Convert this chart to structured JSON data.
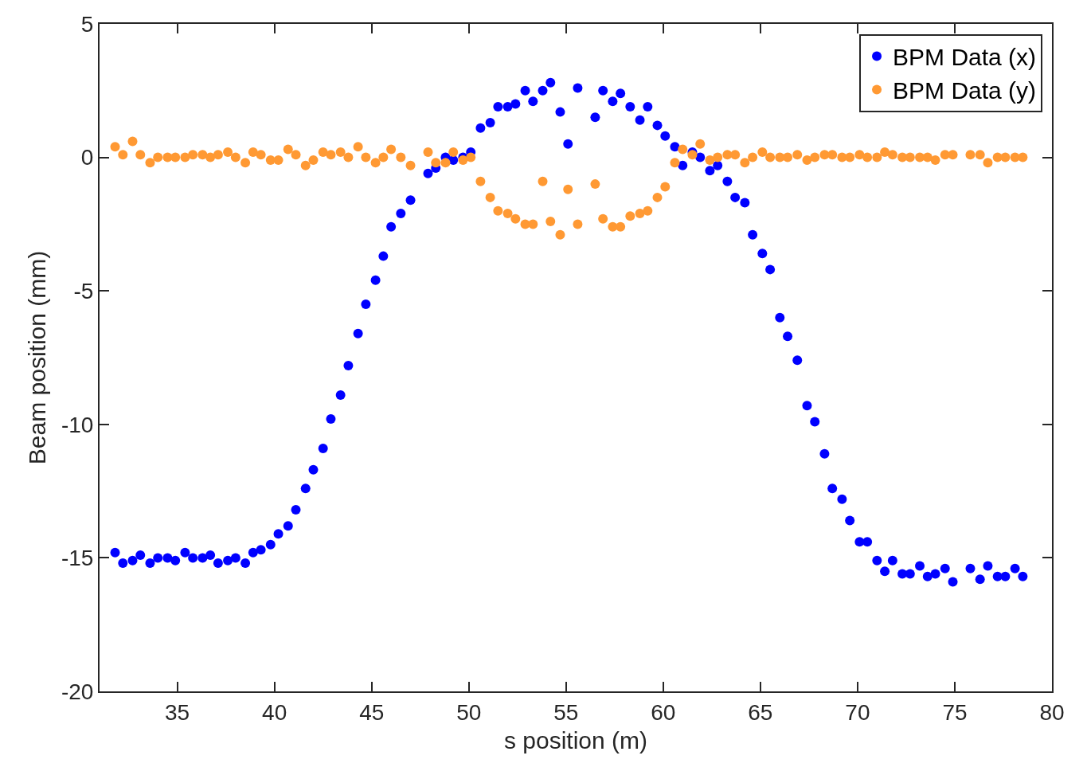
{
  "chart_data": {
    "type": "scatter",
    "xlabel": "s position (m)",
    "ylabel": "Beam position (mm)",
    "x": [
      31.8,
      32.2,
      32.7,
      33.1,
      33.6,
      34.0,
      34.5,
      34.9,
      35.4,
      35.8,
      36.3,
      36.7,
      37.1,
      37.6,
      38.0,
      38.5,
      38.9,
      39.3,
      39.8,
      40.2,
      40.7,
      41.1,
      41.6,
      42.0,
      42.5,
      42.9,
      43.4,
      43.8,
      44.3,
      44.7,
      45.2,
      45.6,
      46.0,
      46.5,
      47.0,
      47.9,
      48.3,
      48.8,
      49.2,
      49.7,
      50.1,
      50.6,
      51.1,
      51.5,
      52.0,
      52.4,
      52.9,
      53.3,
      53.8,
      54.2,
      54.7,
      55.1,
      55.6,
      56.5,
      56.9,
      57.4,
      57.8,
      58.3,
      58.8,
      59.2,
      59.7,
      60.1,
      60.6,
      61.0,
      61.5,
      61.9,
      62.4,
      62.8,
      63.3,
      63.7,
      64.2,
      64.6,
      65.1,
      65.5,
      66.0,
      66.4,
      66.9,
      67.4,
      67.8,
      68.3,
      68.7,
      69.2,
      69.6,
      70.1,
      70.5,
      71.0,
      71.4,
      71.8,
      72.3,
      72.7,
      73.2,
      73.6,
      74.0,
      74.5,
      74.9,
      75.8,
      76.3,
      76.7,
      77.2,
      77.6,
      78.1,
      78.5
    ],
    "series": [
      {
        "name": "BPM Data (x)",
        "color": "#0000ff",
        "values": [
          -14.8,
          -15.2,
          -15.1,
          -14.9,
          -15.2,
          -15.0,
          -15.0,
          -15.1,
          -14.8,
          -15.0,
          -15.0,
          -14.9,
          -15.2,
          -15.1,
          -15.0,
          -15.2,
          -14.8,
          -14.7,
          -14.5,
          -14.1,
          -13.8,
          -13.2,
          -12.4,
          -11.7,
          -10.9,
          -9.8,
          -8.9,
          -7.8,
          -6.6,
          -5.5,
          -4.6,
          -3.7,
          -2.6,
          -2.1,
          -1.6,
          -0.6,
          -0.4,
          0.0,
          -0.1,
          0.0,
          0.2,
          1.1,
          1.3,
          1.9,
          1.9,
          2.0,
          2.5,
          2.1,
          2.5,
          2.8,
          1.7,
          0.5,
          2.6,
          1.5,
          2.5,
          2.1,
          2.4,
          1.9,
          1.4,
          1.9,
          1.2,
          0.8,
          0.4,
          -0.3,
          0.2,
          0.0,
          -0.5,
          -0.3,
          -0.9,
          -1.5,
          -1.7,
          -2.9,
          -3.6,
          -4.2,
          -6.0,
          -6.7,
          -7.6,
          -9.3,
          -9.9,
          -11.1,
          -12.4,
          -12.8,
          -13.6,
          -14.4,
          -14.4,
          -15.1,
          -15.5,
          -15.1,
          -15.6,
          -15.6,
          -15.3,
          -15.7,
          -15.6,
          -15.4,
          -15.9,
          -15.4,
          -15.8,
          -15.3,
          -15.7,
          -15.7,
          -15.4,
          -15.7
        ]
      },
      {
        "name": "BPM Data (y)",
        "color": "#ff9933",
        "values": [
          0.4,
          0.1,
          0.6,
          0.1,
          -0.2,
          0.0,
          0.0,
          0.0,
          0.0,
          0.1,
          0.1,
          0.0,
          0.1,
          0.2,
          0.0,
          -0.2,
          0.2,
          0.1,
          -0.1,
          -0.1,
          0.3,
          0.1,
          -0.3,
          -0.1,
          0.2,
          0.1,
          0.2,
          0.0,
          0.4,
          0.0,
          -0.2,
          0.0,
          0.3,
          0.0,
          -0.3,
          0.2,
          -0.2,
          -0.2,
          0.2,
          -0.1,
          0.0,
          -0.9,
          -1.5,
          -2.0,
          -2.1,
          -2.3,
          -2.5,
          -2.5,
          -0.9,
          -2.4,
          -2.9,
          -1.2,
          -2.5,
          -1.0,
          -2.3,
          -2.6,
          -2.6,
          -2.2,
          -2.1,
          -2.0,
          -1.5,
          -1.1,
          -0.2,
          0.3,
          0.1,
          0.5,
          -0.1,
          0.0,
          0.1,
          0.1,
          -0.2,
          0.0,
          0.2,
          0.0,
          0.0,
          0.0,
          0.1,
          -0.1,
          0.0,
          0.1,
          0.1,
          0.0,
          0.0,
          0.1,
          0.0,
          0.0,
          0.2,
          0.1,
          0.0,
          0.0,
          0.0,
          0.0,
          -0.1,
          0.1,
          0.1,
          0.1,
          0.1,
          -0.2,
          0.0,
          0.0,
          0.0,
          0.0
        ]
      }
    ],
    "xlim": [
      31,
      80
    ],
    "xticks": [
      35,
      40,
      45,
      50,
      55,
      60,
      65,
      70,
      75,
      80
    ],
    "ylim": [
      -20,
      5
    ],
    "yticks": [
      -20,
      -15,
      -10,
      -5,
      0,
      5
    ],
    "legend": "top right",
    "marker": "circle"
  }
}
